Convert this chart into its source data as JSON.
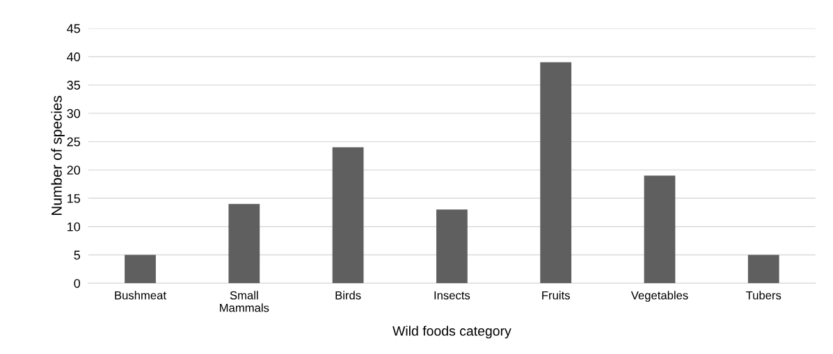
{
  "chart_data": {
    "type": "bar",
    "xlabel": "Wild foods category",
    "ylabel": "Number of species",
    "categories": [
      "Bushmeat",
      "Small\nMammals",
      "Birds",
      "Insects",
      "Fruits",
      "Vegetables",
      "Tubers"
    ],
    "values": [
      5,
      14,
      24,
      13,
      39,
      19,
      5
    ],
    "color": "#5f5f5f",
    "ylim": [
      0,
      45
    ],
    "yticks": [
      0,
      5,
      10,
      15,
      20,
      25,
      30,
      35,
      40,
      45
    ],
    "grid": "y",
    "legend": false
  }
}
